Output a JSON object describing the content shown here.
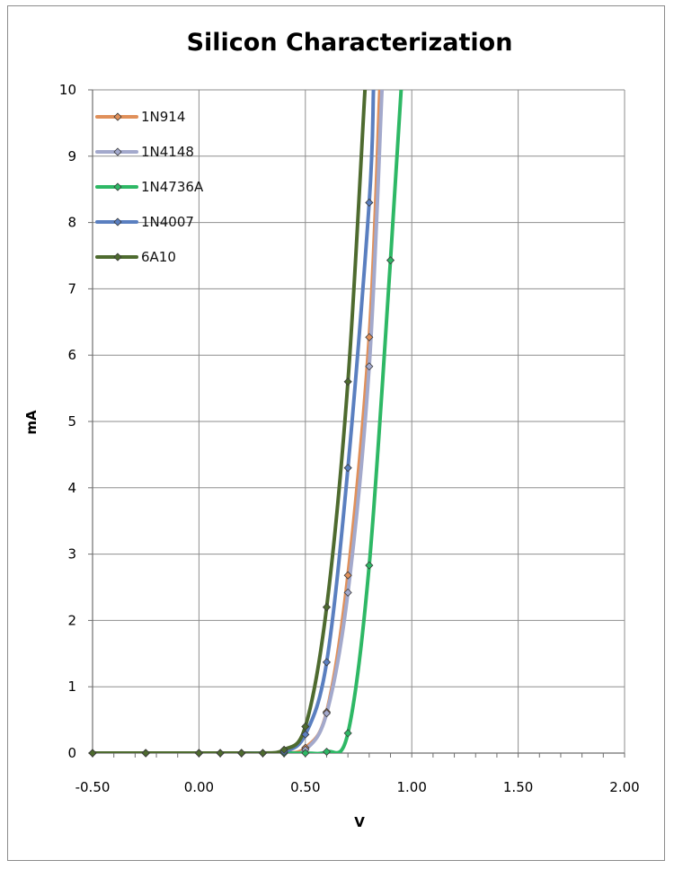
{
  "chart_data": {
    "type": "scatter",
    "title": "Silicon Characterization",
    "xlabel": "V",
    "ylabel": "mA",
    "xlim": [
      -0.5,
      2.0
    ],
    "ylim": [
      0,
      10
    ],
    "x_ticks": [
      "-0.50",
      "0.00",
      "0.50",
      "1.00",
      "1.50",
      "2.00"
    ],
    "y_ticks": [
      "0",
      "1",
      "2",
      "3",
      "4",
      "5",
      "6",
      "7",
      "8",
      "9",
      "10"
    ],
    "grid": true,
    "legend_position": "top-left",
    "lines": "smooth lines with diamond markers",
    "series": [
      {
        "name": "1N914",
        "color": "#e0905a",
        "points": [
          [
            -0.5,
            0
          ],
          [
            -0.25,
            0
          ],
          [
            0,
            0
          ],
          [
            0.1,
            0
          ],
          [
            0.2,
            0
          ],
          [
            0.3,
            0
          ],
          [
            0.4,
            0
          ],
          [
            0.5,
            0.08
          ],
          [
            0.6,
            0.62
          ],
          [
            0.7,
            2.68
          ],
          [
            0.8,
            6.27
          ],
          [
            0.85,
            10
          ]
        ]
      },
      {
        "name": "1N4148",
        "color": "#a3a9cc",
        "points": [
          [
            -0.5,
            0
          ],
          [
            -0.25,
            0
          ],
          [
            0,
            0
          ],
          [
            0.1,
            0
          ],
          [
            0.2,
            0
          ],
          [
            0.3,
            0
          ],
          [
            0.4,
            0
          ],
          [
            0.5,
            0.05
          ],
          [
            0.6,
            0.6
          ],
          [
            0.7,
            2.42
          ],
          [
            0.8,
            5.83
          ],
          [
            0.86,
            10
          ]
        ]
      },
      {
        "name": "1N4736A",
        "color": "#2eb865",
        "points": [
          [
            -0.5,
            0
          ],
          [
            -0.25,
            0
          ],
          [
            0,
            0
          ],
          [
            0.1,
            0
          ],
          [
            0.2,
            0
          ],
          [
            0.3,
            0
          ],
          [
            0.4,
            0
          ],
          [
            0.5,
            0
          ],
          [
            0.6,
            0.02
          ],
          [
            0.7,
            0.3
          ],
          [
            0.8,
            2.83
          ],
          [
            0.9,
            7.43
          ],
          [
            0.95,
            10
          ]
        ]
      },
      {
        "name": "1N4007",
        "color": "#5a7fc0",
        "points": [
          [
            -0.5,
            0
          ],
          [
            -0.25,
            0
          ],
          [
            0,
            0
          ],
          [
            0.1,
            0
          ],
          [
            0.2,
            0
          ],
          [
            0.3,
            0
          ],
          [
            0.4,
            0.02
          ],
          [
            0.5,
            0.28
          ],
          [
            0.6,
            1.37
          ],
          [
            0.7,
            4.3
          ],
          [
            0.8,
            8.3
          ],
          [
            0.82,
            10
          ]
        ]
      },
      {
        "name": "6A10",
        "color": "#4e6b2f",
        "points": [
          [
            -0.5,
            0
          ],
          [
            -0.25,
            0
          ],
          [
            0,
            0
          ],
          [
            0.1,
            0
          ],
          [
            0.2,
            0
          ],
          [
            0.3,
            0
          ],
          [
            0.4,
            0.05
          ],
          [
            0.5,
            0.4
          ],
          [
            0.6,
            2.2
          ],
          [
            0.7,
            5.6
          ],
          [
            0.78,
            10
          ]
        ]
      }
    ]
  }
}
